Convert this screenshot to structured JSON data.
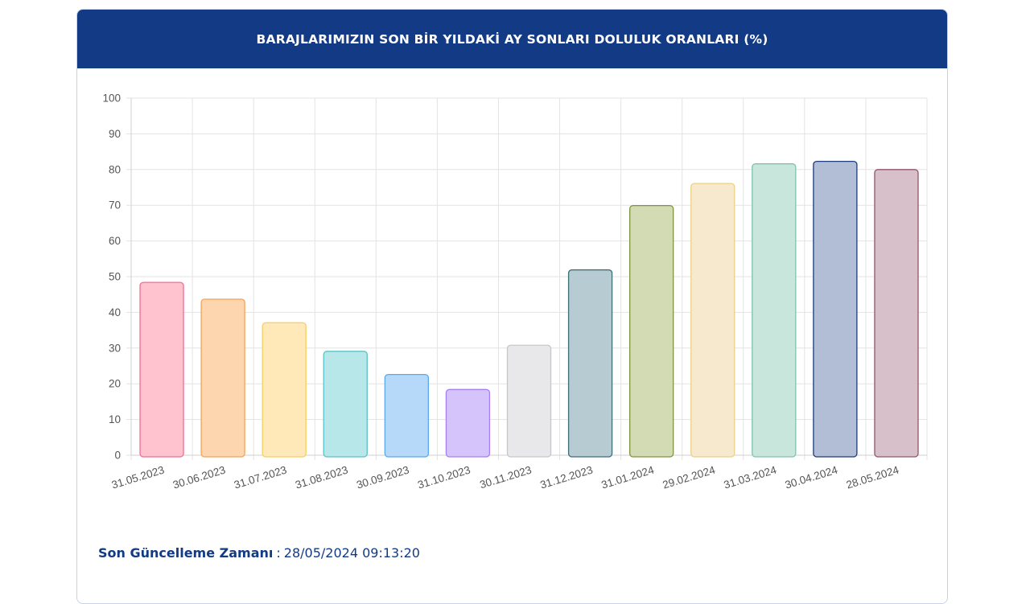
{
  "card": {
    "title": "BARAJLARIMIZIN SON BİR YILDAKİ AY SONLARI DOLULUK ORANLARI (%)"
  },
  "footer": {
    "label": "Son Güncelleme Zamanı",
    "separator": ":",
    "value": "28/05/2024 09:13:20"
  },
  "colors": {
    "header_bg": "#123a85",
    "footer_text": "#123a85",
    "grid": "#e3e3e3",
    "tick_text": "#555555"
  },
  "chart_data": {
    "type": "bar",
    "title": "BARAJLARIMIZIN SON BİR YILDAKİ AY SONLARI DOLULUK ORANLARI (%)",
    "xlabel": "",
    "ylabel": "",
    "ylim": [
      0,
      100
    ],
    "yticks": [
      0,
      10,
      20,
      30,
      40,
      50,
      60,
      70,
      80,
      90,
      100
    ],
    "grid": true,
    "legend": "none",
    "categories": [
      "31.05.2023",
      "30.06.2023",
      "31.07.2023",
      "31.08.2023",
      "30.09.2023",
      "31.10.2023",
      "30.11.2023",
      "31.12.2023",
      "31.01.2024",
      "29.02.2024",
      "31.03.2024",
      "30.04.2024",
      "28.05.2024"
    ],
    "values": [
      48.4,
      43.7,
      37.1,
      29.1,
      22.6,
      18.4,
      30.8,
      51.9,
      69.9,
      76.1,
      81.6,
      82.3,
      80.0
    ],
    "bar_fills": [
      "#ffc2cf",
      "#fdd6b0",
      "#ffe9b8",
      "#b8e7ea",
      "#b6d8f9",
      "#d5c4fc",
      "#e8e8ea",
      "#b6cbd2",
      "#d3dbb4",
      "#f6e9cd",
      "#c9e6dc",
      "#b2bdd6",
      "#d7c0c9"
    ],
    "bar_strokes": [
      "#f06d93",
      "#f3a35a",
      "#f5cf60",
      "#5cc2c7",
      "#5aa9ee",
      "#a77ff2",
      "#c7c7cb",
      "#3c6e79",
      "#7f9440",
      "#ecd08a",
      "#7ec4aa",
      "#1e3b7d",
      "#90566a"
    ]
  }
}
